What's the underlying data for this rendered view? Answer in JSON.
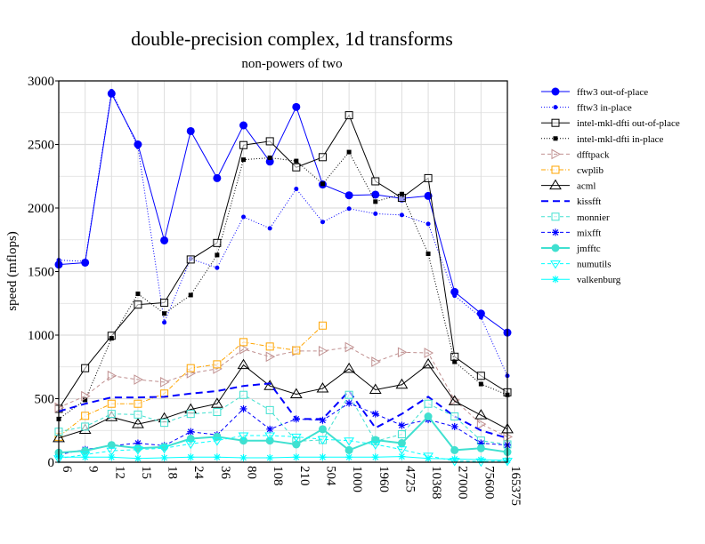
{
  "chart_data": {
    "type": "line",
    "title": "double-precision complex, 1d transforms",
    "subtitle": "non-powers of two",
    "xlabel": "",
    "ylabel": "speed (mflops)",
    "ylim": [
      0,
      3000
    ],
    "yticks": [
      0,
      500,
      1000,
      1500,
      2000,
      2500,
      3000
    ],
    "grid": true,
    "legend_position": "right",
    "categories": [
      "6",
      "9",
      "12",
      "15",
      "18",
      "24",
      "36",
      "80",
      "108",
      "210",
      "504",
      "1000",
      "1960",
      "4725",
      "10368",
      "27000",
      "75600",
      "165375"
    ],
    "series": [
      {
        "name": "fftw3 out-of-place",
        "color": "#0000ff",
        "dash": "",
        "marker": "circle-filled",
        "width": 1,
        "values": [
          1555,
          1570,
          2900,
          2500,
          1745,
          2605,
          2235,
          2650,
          2365,
          2795,
          2185,
          2100,
          2105,
          2075,
          2095,
          1340,
          1170,
          1020
        ]
      },
      {
        "name": "fftw3 in-place",
        "color": "#0000ff",
        "dash": "1,2",
        "marker": "dot",
        "width": 1,
        "values": [
          1590,
          1580,
          2920,
          2480,
          1100,
          1600,
          1530,
          1930,
          1840,
          2150,
          1890,
          1995,
          1955,
          1945,
          1875,
          1310,
          1140,
          680
        ]
      },
      {
        "name": "intel-mkl-dfti out-of-place",
        "color": "#000000",
        "dash": "",
        "marker": "square-open",
        "width": 1,
        "values": [
          420,
          740,
          995,
          1240,
          1255,
          1595,
          1725,
          2495,
          2525,
          2320,
          2400,
          2730,
          2210,
          2080,
          2235,
          830,
          680,
          550
        ]
      },
      {
        "name": "intel-mkl-dfti in-place",
        "color": "#000000",
        "dash": "1,2",
        "marker": "square-filled",
        "width": 1,
        "values": [
          340,
          490,
          975,
          1325,
          1170,
          1315,
          1630,
          2380,
          2395,
          2370,
          2190,
          2440,
          2050,
          2110,
          1640,
          790,
          615,
          530
        ]
      },
      {
        "name": "dfftpack",
        "color": "#c09090",
        "dash": "4,3",
        "marker": "triangle-right",
        "width": 1,
        "values": [
          430,
          520,
          680,
          650,
          630,
          700,
          735,
          890,
          830,
          875,
          875,
          905,
          790,
          865,
          860,
          490,
          300,
          200
        ]
      },
      {
        "name": "cwplib",
        "color": "#ffa500",
        "dash": "5,2,1,2",
        "marker": "square-open",
        "width": 1,
        "values": [
          200,
          365,
          460,
          460,
          540,
          740,
          770,
          945,
          910,
          880,
          1075,
          null,
          null,
          null,
          null,
          null,
          null,
          null
        ]
      },
      {
        "name": "acml",
        "color": "#000000",
        "dash": "",
        "marker": "triangle-up",
        "width": 1,
        "values": [
          190,
          255,
          355,
          300,
          345,
          415,
          460,
          765,
          600,
          535,
          580,
          735,
          570,
          610,
          770,
          480,
          370,
          260
        ]
      },
      {
        "name": "kissfft",
        "color": "#0000ff",
        "dash": "8,5",
        "marker": "none",
        "width": 2,
        "values": [
          400,
          460,
          510,
          510,
          515,
          540,
          560,
          600,
          620,
          340,
          340,
          560,
          270,
          380,
          515,
          360,
          250,
          190
        ]
      },
      {
        "name": "monnier",
        "color": "#40e0d0",
        "dash": "4,3",
        "marker": "square-open",
        "width": 1,
        "values": [
          240,
          280,
          380,
          375,
          310,
          380,
          395,
          530,
          410,
          165,
          175,
          530,
          165,
          220,
          460,
          360,
          170,
          140
        ]
      },
      {
        "name": "mixfft",
        "color": "#0000ff",
        "dash": "4,3",
        "marker": "star",
        "width": 1,
        "values": [
          60,
          100,
          130,
          150,
          130,
          240,
          215,
          420,
          260,
          340,
          330,
          465,
          380,
          290,
          335,
          280,
          150,
          135
        ]
      },
      {
        "name": "jmfftc",
        "color": "#40e0d0",
        "dash": "",
        "marker": "circle-filled",
        "width": 2,
        "values": [
          75,
          90,
          135,
          110,
          120,
          185,
          200,
          170,
          170,
          140,
          260,
          95,
          175,
          150,
          360,
          95,
          110,
          80
        ]
      },
      {
        "name": "numutils",
        "color": "#00ffff",
        "dash": "4,3",
        "marker": "triangle-down",
        "width": 1,
        "values": [
          30,
          60,
          90,
          100,
          110,
          145,
          170,
          210,
          210,
          200,
          180,
          170,
          140,
          100,
          50,
          10,
          5,
          10
        ]
      },
      {
        "name": "valkenburg",
        "color": "#00ffff",
        "dash": "",
        "marker": "star",
        "width": 1,
        "values": [
          40,
          40,
          40,
          30,
          35,
          40,
          40,
          35,
          35,
          40,
          40,
          40,
          40,
          45,
          30,
          25,
          20,
          15
        ]
      }
    ]
  }
}
